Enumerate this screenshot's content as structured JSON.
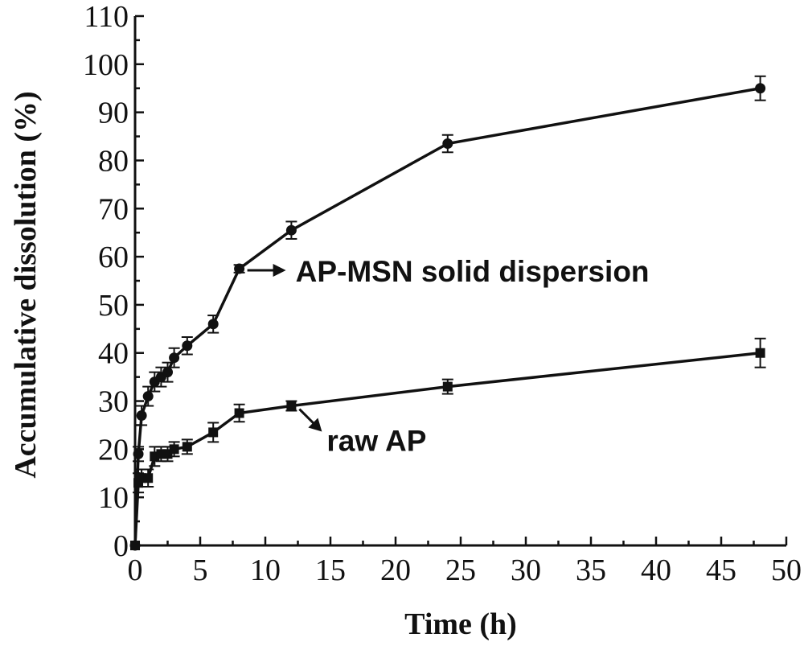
{
  "chart_data": {
    "type": "line",
    "xlabel": "Time (h)",
    "ylabel": "Accumulative dissolution (%)",
    "xlim": [
      0,
      50
    ],
    "ylim": [
      0,
      110
    ],
    "xticks": [
      0,
      5,
      10,
      15,
      20,
      25,
      30,
      35,
      40,
      45,
      50
    ],
    "yticks": [
      0,
      10,
      20,
      30,
      40,
      50,
      60,
      70,
      80,
      90,
      100,
      110
    ],
    "grid": false,
    "legend": "none",
    "series": [
      {
        "label_text": "AP-MSN solid dispersion",
        "marker": "circle",
        "x": [
          0,
          0.25,
          0.5,
          1,
          1.5,
          2,
          2.5,
          3,
          4,
          6,
          8,
          12,
          24,
          48
        ],
        "y": [
          0,
          19,
          27,
          31,
          34,
          35,
          36,
          39,
          41.5,
          46,
          57.5,
          65.5,
          83.5,
          95
        ],
        "err": [
          0,
          1.5,
          2,
          2,
          2,
          2,
          2,
          2,
          1.8,
          1.8,
          0.8,
          1.8,
          1.8,
          2.5
        ]
      },
      {
        "label_text": "raw AP",
        "marker": "square",
        "x": [
          0,
          0.25,
          0.5,
          1,
          1.5,
          2,
          2.5,
          3,
          4,
          6,
          8,
          12,
          24,
          48
        ],
        "y": [
          0,
          13,
          14,
          14,
          18.5,
          19,
          19,
          20,
          20.5,
          23.5,
          27.5,
          29,
          33,
          40
        ],
        "err": [
          0,
          2,
          1.8,
          1.8,
          2,
          1.5,
          1.5,
          1.5,
          1.5,
          2,
          1.8,
          1,
          1.5,
          3
        ]
      }
    ],
    "annotations": [
      {
        "text": "AP-MSN solid dispersion",
        "series_index": 0,
        "point_index": 10
      },
      {
        "text": "raw AP",
        "series_index": 1,
        "point_index": 11
      }
    ]
  }
}
